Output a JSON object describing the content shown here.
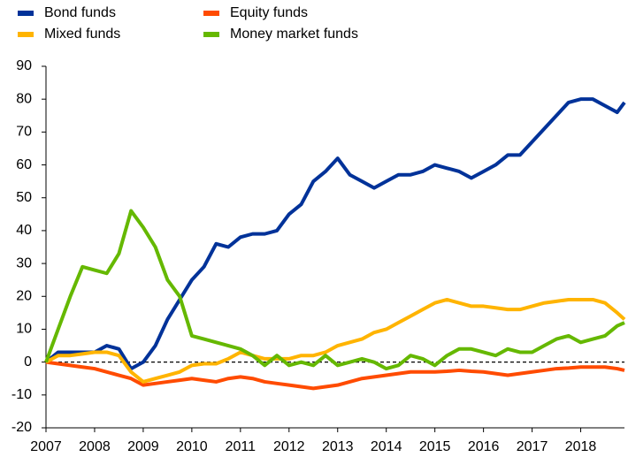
{
  "chart_data": {
    "type": "line",
    "x": [
      2007,
      2007.25,
      2007.5,
      2007.75,
      2008,
      2008.25,
      2008.5,
      2008.75,
      2009,
      2009.25,
      2009.5,
      2009.75,
      2010,
      2010.25,
      2010.5,
      2010.75,
      2011,
      2011.25,
      2011.5,
      2011.75,
      2012,
      2012.25,
      2012.5,
      2012.75,
      2013,
      2013.25,
      2013.5,
      2013.75,
      2014,
      2014.25,
      2014.5,
      2014.75,
      2015,
      2015.25,
      2015.5,
      2015.75,
      2016,
      2016.25,
      2016.5,
      2016.75,
      2017,
      2017.25,
      2017.5,
      2017.75,
      2018,
      2018.25,
      2018.5,
      2018.75,
      2018.9
    ],
    "series": [
      {
        "name": "Bond funds",
        "color": "#003299",
        "values": [
          0,
          3,
          3,
          3,
          3,
          5,
          4,
          -2,
          0,
          5,
          13,
          19,
          25,
          29,
          36,
          35,
          38,
          39,
          39,
          40,
          45,
          48,
          55,
          58,
          62,
          57,
          55,
          53,
          55,
          57,
          57,
          58,
          60,
          59,
          58,
          56,
          58,
          60,
          63,
          63,
          67,
          71,
          75,
          79,
          80,
          80,
          78,
          76,
          79
        ]
      },
      {
        "name": "Equity funds",
        "color": "#ff4b00",
        "values": [
          0,
          -0.5,
          -1,
          -1.5,
          -2,
          -3,
          -4,
          -5,
          -7,
          -6.5,
          -6,
          -5.5,
          -5,
          -5.5,
          -6,
          -5,
          -4.5,
          -5,
          -6,
          -6.5,
          -7,
          -7.5,
          -8,
          -7.5,
          -7,
          -6,
          -5,
          -4.5,
          -4,
          -3.5,
          -3,
          -3,
          -3,
          -2.8,
          -2.5,
          -2.8,
          -3,
          -3.5,
          -4,
          -3.5,
          -3,
          -2.5,
          -2,
          -1.8,
          -1.5,
          -1.5,
          -1.5,
          -2,
          -2.5
        ]
      },
      {
        "name": "Mixed funds",
        "color": "#ffb400",
        "values": [
          0,
          2,
          2,
          2.5,
          3,
          3,
          2,
          -3,
          -6,
          -5,
          -4,
          -3,
          -1,
          -0.5,
          -0.5,
          1,
          3,
          2,
          1,
          1,
          1,
          2,
          2,
          3,
          5,
          6,
          7,
          9,
          10,
          12,
          14,
          16,
          18,
          19,
          18,
          17,
          17,
          16.5,
          16,
          16,
          17,
          18,
          18.5,
          19,
          19,
          19,
          18,
          15,
          13
        ]
      },
      {
        "name": "Money market funds",
        "color": "#65b800",
        "values": [
          0,
          10,
          20,
          29,
          28,
          27,
          33,
          46,
          41,
          35,
          25,
          20,
          8,
          7,
          6,
          5,
          4,
          2,
          -1,
          2,
          -1,
          0,
          -1,
          2,
          -1,
          0,
          1,
          0,
          -2,
          -1,
          2,
          1,
          -1,
          2,
          4,
          4,
          3,
          2,
          4,
          3,
          3,
          5,
          7,
          8,
          6,
          7,
          8,
          11,
          12
        ]
      }
    ],
    "xlim": [
      2007,
      2018.9
    ],
    "xticks": [
      2007,
      2008,
      2009,
      2010,
      2011,
      2012,
      2013,
      2014,
      2015,
      2016,
      2017,
      2018
    ],
    "ylim": [
      -20,
      90
    ],
    "yticks": [
      -20,
      -10,
      0,
      10,
      20,
      30,
      40,
      50,
      60,
      70,
      80,
      90
    ]
  }
}
